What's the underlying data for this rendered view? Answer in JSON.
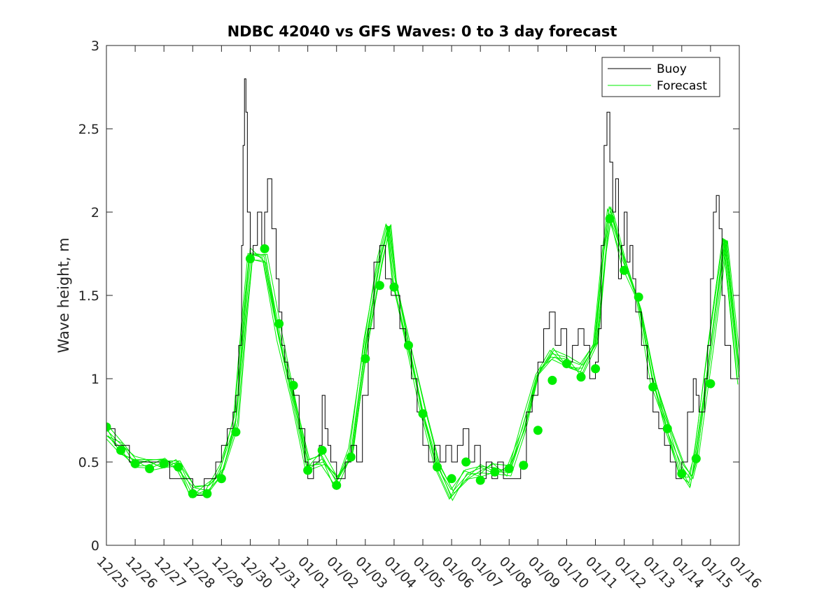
{
  "chart_data": {
    "type": "line",
    "title": "NDBC 42040 vs GFS Waves: 0 to 3 day forecast",
    "xlabel": "",
    "ylabel": "Wave height, m",
    "ylim": [
      0,
      3
    ],
    "xlim": [
      0,
      22
    ],
    "yticks": [
      0,
      0.5,
      1,
      1.5,
      2,
      2.5,
      3
    ],
    "ytick_labels": [
      "0",
      "0.5",
      "1",
      "1.5",
      "2",
      "2.5",
      "3"
    ],
    "xtick_labels": [
      "12/25",
      "12/26",
      "12/27",
      "12/28",
      "12/29",
      "12/30",
      "12/31",
      "01/01",
      "01/02",
      "01/03",
      "01/04",
      "01/05",
      "01/06",
      "01/07",
      "01/08",
      "01/09",
      "01/10",
      "01/11",
      "01/12",
      "01/13",
      "01/14",
      "01/15",
      "01/16"
    ],
    "x_units": "days since 12/25 00Z",
    "legend": {
      "position": "top-right",
      "entries": [
        {
          "label": "Buoy",
          "color": "#000000"
        },
        {
          "label": "Forecast",
          "color": "#00ee00"
        }
      ]
    },
    "colors": {
      "buoy": "#000000",
      "forecast": "#00ee00",
      "analysis_marker": "#00ee00"
    },
    "series": [
      {
        "name": "Buoy",
        "x": [
          0,
          0.3,
          0.5,
          0.8,
          1.0,
          1.2,
          1.5,
          1.8,
          2.0,
          2.2,
          2.5,
          2.8,
          3.0,
          3.2,
          3.4,
          3.6,
          3.8,
          4.0,
          4.2,
          4.4,
          4.5,
          4.6,
          4.7,
          4.75,
          4.8,
          4.85,
          4.9,
          5.0,
          5.1,
          5.25,
          5.4,
          5.5,
          5.6,
          5.75,
          5.9,
          6.0,
          6.1,
          6.2,
          6.3,
          6.5,
          6.7,
          6.9,
          7.0,
          7.2,
          7.4,
          7.5,
          7.6,
          7.7,
          7.8,
          8.0,
          8.2,
          8.3,
          8.5,
          8.7,
          8.9,
          9.1,
          9.3,
          9.5,
          9.7,
          9.9,
          10.0,
          10.2,
          10.4,
          10.6,
          10.8,
          11.0,
          11.2,
          11.4,
          11.6,
          11.8,
          12.0,
          12.2,
          12.4,
          12.6,
          12.8,
          13.0,
          13.2,
          13.4,
          13.6,
          13.8,
          14.0,
          14.2,
          14.4,
          14.6,
          14.8,
          15.0,
          15.2,
          15.4,
          15.6,
          15.8,
          16.0,
          16.2,
          16.4,
          16.6,
          16.8,
          17.0,
          17.1,
          17.2,
          17.3,
          17.4,
          17.5,
          17.6,
          17.7,
          17.8,
          17.9,
          18.0,
          18.1,
          18.2,
          18.3,
          18.4,
          18.6,
          18.8,
          19.0,
          19.2,
          19.4,
          19.6,
          19.8,
          20.0,
          20.2,
          20.4,
          20.5,
          20.6,
          20.8,
          20.9,
          21.0,
          21.1,
          21.2,
          21.3,
          21.4,
          21.5,
          21.7,
          22.0
        ],
        "values": [
          0.7,
          0.6,
          0.6,
          0.5,
          0.5,
          0.5,
          0.5,
          0.5,
          0.5,
          0.4,
          0.4,
          0.4,
          0.3,
          0.3,
          0.4,
          0.4,
          0.5,
          0.6,
          0.7,
          0.8,
          0.9,
          1.2,
          1.8,
          2.4,
          2.8,
          2.6,
          2.0,
          1.7,
          1.8,
          2.0,
          1.8,
          2.0,
          2.2,
          1.9,
          1.6,
          1.4,
          1.2,
          1.1,
          1.0,
          0.9,
          0.7,
          0.5,
          0.4,
          0.5,
          0.6,
          0.9,
          0.7,
          0.6,
          0.5,
          0.4,
          0.4,
          0.5,
          0.6,
          0.5,
          0.9,
          1.3,
          1.7,
          1.8,
          1.6,
          1.5,
          1.5,
          1.3,
          1.2,
          1.0,
          0.8,
          0.6,
          0.5,
          0.6,
          0.5,
          0.6,
          0.5,
          0.6,
          0.7,
          0.5,
          0.6,
          0.4,
          0.5,
          0.4,
          0.5,
          0.4,
          0.4,
          0.4,
          0.5,
          0.8,
          0.9,
          1.1,
          1.3,
          1.4,
          1.2,
          1.3,
          1.1,
          1.2,
          1.3,
          1.2,
          1.0,
          1.1,
          1.3,
          1.8,
          2.4,
          2.6,
          2.3,
          2.0,
          2.2,
          1.6,
          1.8,
          2.0,
          1.7,
          1.8,
          1.6,
          1.4,
          1.2,
          1.0,
          0.8,
          0.7,
          0.6,
          0.5,
          0.4,
          0.5,
          0.8,
          1.0,
          0.9,
          0.8,
          1.0,
          1.2,
          1.6,
          2.0,
          2.1,
          1.9,
          1.5,
          1.2,
          1.0,
          0.9
        ]
      },
      {
        "name": "Forecast",
        "x": [
          0,
          0.5,
          1.0,
          1.5,
          2.0,
          2.5,
          3.0,
          3.5,
          4.0,
          4.5,
          4.8,
          5.0,
          5.5,
          6.0,
          6.5,
          7.0,
          7.5,
          8.0,
          8.5,
          9.0,
          9.5,
          9.8,
          10.0,
          10.5,
          11.0,
          11.5,
          12.0,
          12.5,
          13.0,
          13.5,
          14.0,
          14.5,
          15.0,
          15.5,
          16.0,
          16.5,
          17.0,
          17.3,
          17.5,
          18.0,
          18.5,
          19.0,
          19.5,
          20.0,
          20.3,
          20.5,
          21.0,
          21.5,
          22.0
        ],
        "values": [
          0.68,
          0.58,
          0.5,
          0.48,
          0.5,
          0.48,
          0.32,
          0.33,
          0.45,
          0.75,
          1.4,
          1.75,
          1.72,
          1.25,
          0.85,
          0.48,
          0.52,
          0.38,
          0.55,
          1.2,
          1.7,
          1.95,
          1.6,
          1.2,
          0.8,
          0.45,
          0.3,
          0.42,
          0.45,
          0.46,
          0.45,
          0.7,
          1.05,
          1.15,
          1.1,
          1.05,
          1.2,
          1.75,
          2.0,
          1.7,
          1.45,
          1.0,
          0.7,
          0.45,
          0.38,
          0.55,
          1.2,
          1.85,
          1.0
        ]
      }
    ],
    "forecast_ensemble_offsets": [
      -0.08,
      -0.05,
      -0.02,
      0.0,
      0.03,
      0.06,
      0.09
    ],
    "analysis_points": {
      "name": "Forecast day-0 markers",
      "x": [
        0,
        0.5,
        1.0,
        1.5,
        2.0,
        2.5,
        3.0,
        3.5,
        4.0,
        4.5,
        5.0,
        5.5,
        6.0,
        6.5,
        7.0,
        7.5,
        8.0,
        8.5,
        9.0,
        9.5,
        10.0,
        10.5,
        11.0,
        11.5,
        12.0,
        12.5,
        13.0,
        13.5,
        14.0,
        14.5,
        15.0,
        15.5,
        16.0,
        16.5,
        17.0,
        17.5,
        18.0,
        18.5,
        19.0,
        19.5,
        20.0,
        20.5,
        21.0
      ],
      "values": [
        0.71,
        0.57,
        0.49,
        0.46,
        0.49,
        0.47,
        0.31,
        0.31,
        0.4,
        0.68,
        1.72,
        1.78,
        1.33,
        0.96,
        0.45,
        0.57,
        0.36,
        0.53,
        1.12,
        1.56,
        1.55,
        1.2,
        0.79,
        0.47,
        0.4,
        0.5,
        0.39,
        0.44,
        0.46,
        0.48,
        0.69,
        0.99,
        1.09,
        1.01,
        1.06,
        1.96,
        1.65,
        1.49,
        0.95,
        0.7,
        0.43,
        0.52,
        0.97
      ]
    }
  }
}
